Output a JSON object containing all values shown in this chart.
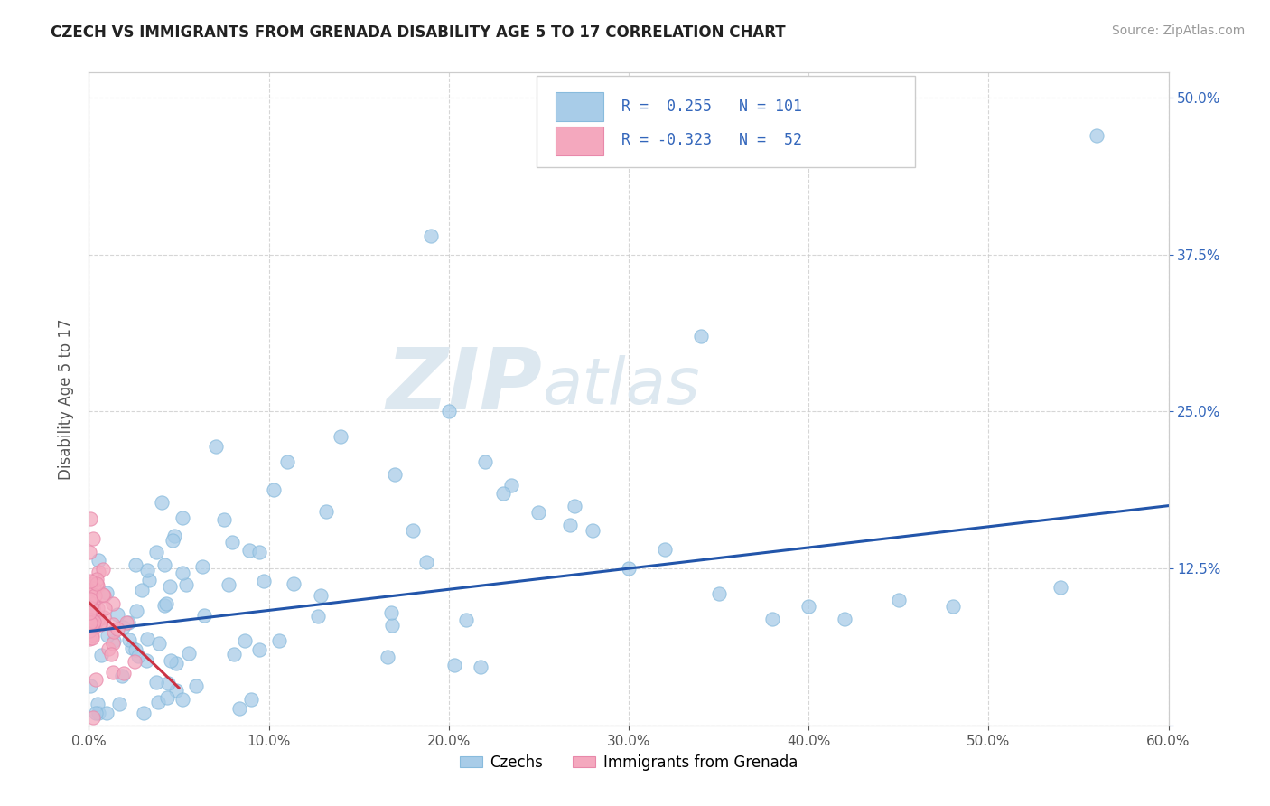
{
  "title": "CZECH VS IMMIGRANTS FROM GRENADA DISABILITY AGE 5 TO 17 CORRELATION CHART",
  "source": "Source: ZipAtlas.com",
  "ylabel": "Disability Age 5 to 17",
  "xlim": [
    0.0,
    0.6
  ],
  "ylim": [
    0.0,
    0.52
  ],
  "legend_labels": [
    "Czechs",
    "Immigrants from Grenada"
  ],
  "r1": 0.255,
  "n1": 101,
  "r2": -0.323,
  "n2": 52,
  "blue_color": "#a8cce8",
  "pink_color": "#f4a8be",
  "line_blue": "#2255aa",
  "line_pink": "#cc3344",
  "watermark_zip": "ZIP",
  "watermark_atlas": "atlas",
  "background_color": "#ffffff",
  "trend_czech_x0": 0.0,
  "trend_czech_x1": 0.6,
  "trend_czech_y0": 0.075,
  "trend_czech_y1": 0.175,
  "trend_grenada_x0": 0.0,
  "trend_grenada_x1": 0.05,
  "trend_grenada_y0": 0.098,
  "trend_grenada_y1": 0.03
}
